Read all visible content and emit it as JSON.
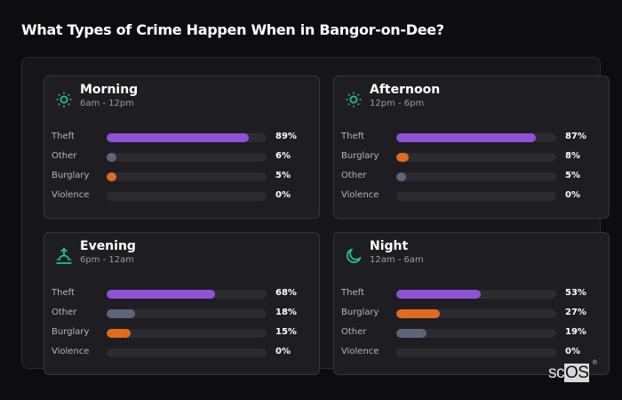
{
  "title": "What Types of Crime Happen When in Bangor-on-Dee?",
  "colors": {
    "theft": "#9150d8",
    "other": "#5e6578",
    "burglary": "#e06b1e",
    "violence": "#2b2b30",
    "accent": "#22c08f"
  },
  "cards": [
    {
      "name": "Morning",
      "range": "6am - 12pm",
      "icon": "sun-icon",
      "rows": [
        {
          "label": "Theft",
          "value": 89,
          "pct": "89%",
          "color": "#9150d8"
        },
        {
          "label": "Other",
          "value": 6,
          "pct": "6%",
          "color": "#5e6578"
        },
        {
          "label": "Burglary",
          "value": 5,
          "pct": "5%",
          "color": "#e06b1e"
        },
        {
          "label": "Violence",
          "value": 0,
          "pct": "0%",
          "color": "#2b2b30"
        }
      ]
    },
    {
      "name": "Afternoon",
      "range": "12pm - 6pm",
      "icon": "sun-icon",
      "rows": [
        {
          "label": "Theft",
          "value": 87,
          "pct": "87%",
          "color": "#9150d8"
        },
        {
          "label": "Burglary",
          "value": 8,
          "pct": "8%",
          "color": "#e06b1e"
        },
        {
          "label": "Other",
          "value": 5,
          "pct": "5%",
          "color": "#5e6578"
        },
        {
          "label": "Violence",
          "value": 0,
          "pct": "0%",
          "color": "#2b2b30"
        }
      ]
    },
    {
      "name": "Evening",
      "range": "6pm - 12am",
      "icon": "sunset-icon",
      "rows": [
        {
          "label": "Theft",
          "value": 68,
          "pct": "68%",
          "color": "#9150d8"
        },
        {
          "label": "Other",
          "value": 18,
          "pct": "18%",
          "color": "#5e6578"
        },
        {
          "label": "Burglary",
          "value": 15,
          "pct": "15%",
          "color": "#e06b1e"
        },
        {
          "label": "Violence",
          "value": 0,
          "pct": "0%",
          "color": "#2b2b30"
        }
      ]
    },
    {
      "name": "Night",
      "range": "12am - 6am",
      "icon": "moon-icon",
      "rows": [
        {
          "label": "Theft",
          "value": 53,
          "pct": "53%",
          "color": "#9150d8"
        },
        {
          "label": "Burglary",
          "value": 27,
          "pct": "27%",
          "color": "#e06b1e"
        },
        {
          "label": "Other",
          "value": 19,
          "pct": "19%",
          "color": "#5e6578"
        },
        {
          "label": "Violence",
          "value": 0,
          "pct": "0%",
          "color": "#2b2b30"
        }
      ]
    }
  ],
  "logo": {
    "sc": "sc",
    "os": "OS",
    "reg": "®"
  },
  "chart_data": [
    {
      "type": "bar",
      "title": "Morning",
      "subtitle": "6am - 12pm",
      "categories": [
        "Theft",
        "Other",
        "Burglary",
        "Violence"
      ],
      "values": [
        89,
        6,
        5,
        0
      ],
      "ylim": [
        0,
        100
      ]
    },
    {
      "type": "bar",
      "title": "Afternoon",
      "subtitle": "12pm - 6pm",
      "categories": [
        "Theft",
        "Burglary",
        "Other",
        "Violence"
      ],
      "values": [
        87,
        8,
        5,
        0
      ],
      "ylim": [
        0,
        100
      ]
    },
    {
      "type": "bar",
      "title": "Evening",
      "subtitle": "6pm - 12am",
      "categories": [
        "Theft",
        "Other",
        "Burglary",
        "Violence"
      ],
      "values": [
        68,
        18,
        15,
        0
      ],
      "ylim": [
        0,
        100
      ]
    },
    {
      "type": "bar",
      "title": "Night",
      "subtitle": "12am - 6am",
      "categories": [
        "Theft",
        "Burglary",
        "Other",
        "Violence"
      ],
      "values": [
        53,
        27,
        19,
        0
      ],
      "ylim": [
        0,
        100
      ]
    }
  ]
}
